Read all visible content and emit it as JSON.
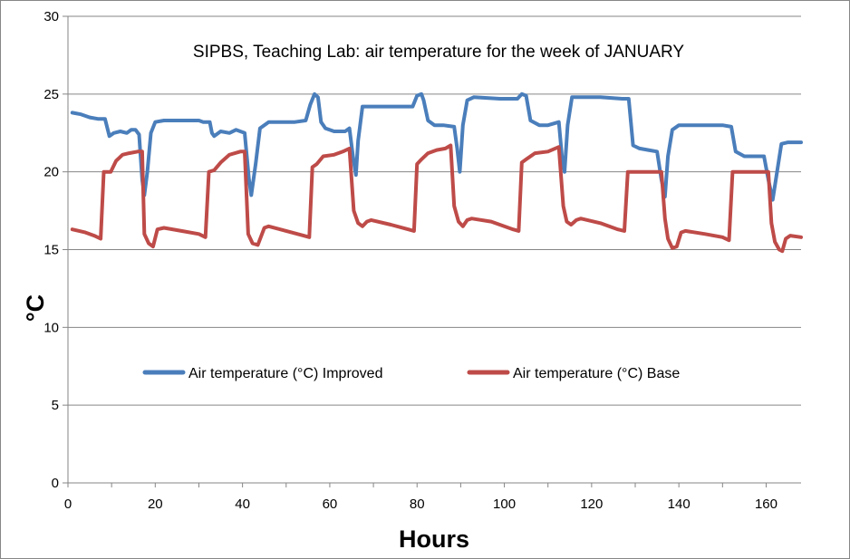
{
  "chart_data": {
    "type": "line",
    "title": "SIPBS, Teaching Lab: air temperature for the week of JANUARY",
    "xlabel": "Hours",
    "ylabel": "°C",
    "xlim": [
      0,
      168
    ],
    "ylim": [
      0,
      30
    ],
    "x_ticks": [
      "0",
      "20",
      "40",
      "60",
      "80",
      "100",
      "120",
      "140",
      "160"
    ],
    "y_ticks": [
      "0",
      "5",
      "10",
      "15",
      "20",
      "25",
      "30"
    ],
    "grid": "horizontal",
    "legend_position": "center",
    "series": [
      {
        "name": "Air temperature (°C) Improved",
        "color": "#4a7ebb",
        "points": [
          [
            1,
            23.8
          ],
          [
            3,
            23.7
          ],
          [
            5,
            23.5
          ],
          [
            7,
            23.4
          ],
          [
            8.5,
            23.4
          ],
          [
            9.5,
            22.3
          ],
          [
            10.5,
            22.5
          ],
          [
            12,
            22.6
          ],
          [
            13.5,
            22.5
          ],
          [
            14.5,
            22.7
          ],
          [
            15.5,
            22.7
          ],
          [
            16.3,
            22.4
          ],
          [
            17,
            19.5
          ],
          [
            17.5,
            18.5
          ],
          [
            18.2,
            20
          ],
          [
            19,
            22.5
          ],
          [
            20,
            23.2
          ],
          [
            22,
            23.3
          ],
          [
            26,
            23.3
          ],
          [
            30,
            23.3
          ],
          [
            31,
            23.2
          ],
          [
            32.5,
            23.2
          ],
          [
            33,
            22.5
          ],
          [
            33.5,
            22.3
          ],
          [
            35,
            22.6
          ],
          [
            37,
            22.5
          ],
          [
            38.5,
            22.7
          ],
          [
            39.5,
            22.6
          ],
          [
            40.5,
            22.5
          ],
          [
            41.5,
            19.5
          ],
          [
            42,
            18.5
          ],
          [
            43,
            20.5
          ],
          [
            44,
            22.8
          ],
          [
            46,
            23.2
          ],
          [
            48,
            23.2
          ],
          [
            52,
            23.2
          ],
          [
            54.5,
            23.3
          ],
          [
            55.5,
            24.3
          ],
          [
            56.5,
            25
          ],
          [
            57.3,
            24.8
          ],
          [
            58,
            23.2
          ],
          [
            59,
            22.8
          ],
          [
            61,
            22.6
          ],
          [
            63.5,
            22.6
          ],
          [
            64.5,
            22.8
          ],
          [
            65.3,
            21
          ],
          [
            66,
            19.8
          ],
          [
            66.5,
            22
          ],
          [
            67.5,
            24.2
          ],
          [
            69,
            24.2
          ],
          [
            71,
            24.2
          ],
          [
            75,
            24.2
          ],
          [
            79,
            24.2
          ],
          [
            80,
            24.9
          ],
          [
            81,
            25
          ],
          [
            81.5,
            24.6
          ],
          [
            82.5,
            23.3
          ],
          [
            84,
            23
          ],
          [
            86,
            23
          ],
          [
            88.5,
            22.9
          ],
          [
            89.2,
            21.5
          ],
          [
            89.8,
            20
          ],
          [
            90.5,
            23
          ],
          [
            91.5,
            24.6
          ],
          [
            93,
            24.8
          ],
          [
            99,
            24.7
          ],
          [
            103,
            24.7
          ],
          [
            104,
            25
          ],
          [
            105,
            24.9
          ],
          [
            106,
            23.3
          ],
          [
            108,
            23
          ],
          [
            110,
            23
          ],
          [
            112.5,
            23.2
          ],
          [
            113.2,
            21
          ],
          [
            113.8,
            20
          ],
          [
            114.5,
            23
          ],
          [
            115.5,
            24.8
          ],
          [
            118,
            24.8
          ],
          [
            122,
            24.8
          ],
          [
            127,
            24.7
          ],
          [
            128.5,
            24.7
          ],
          [
            129.5,
            21.7
          ],
          [
            131,
            21.5
          ],
          [
            133,
            21.4
          ],
          [
            135,
            21.3
          ],
          [
            136,
            19.5
          ],
          [
            136.8,
            18.4
          ],
          [
            137.5,
            21
          ],
          [
            138.5,
            22.7
          ],
          [
            140,
            23
          ],
          [
            146,
            23
          ],
          [
            150,
            23
          ],
          [
            152,
            22.9
          ],
          [
            153,
            21.3
          ],
          [
            155,
            21
          ],
          [
            158,
            21
          ],
          [
            159.5,
            21
          ],
          [
            160.5,
            19.5
          ],
          [
            161.5,
            18.2
          ],
          [
            162.5,
            20
          ],
          [
            163.5,
            21.8
          ],
          [
            165,
            21.9
          ],
          [
            168,
            21.9
          ]
        ]
      },
      {
        "name": "Air temperature (°C) Base",
        "color": "#be4b48",
        "points": [
          [
            1,
            16.3
          ],
          [
            4,
            16.1
          ],
          [
            6,
            15.9
          ],
          [
            7.5,
            15.7
          ],
          [
            8.2,
            20
          ],
          [
            9,
            20
          ],
          [
            9.8,
            20
          ],
          [
            11,
            20.7
          ],
          [
            12.5,
            21.1
          ],
          [
            14,
            21.2
          ],
          [
            16,
            21.3
          ],
          [
            17,
            21.3
          ],
          [
            17.5,
            16
          ],
          [
            18.5,
            15.4
          ],
          [
            19.5,
            15.2
          ],
          [
            20.5,
            16.3
          ],
          [
            22,
            16.4
          ],
          [
            26,
            16.2
          ],
          [
            30,
            16
          ],
          [
            31.5,
            15.8
          ],
          [
            32.3,
            20
          ],
          [
            33.5,
            20.1
          ],
          [
            35,
            20.6
          ],
          [
            37,
            21.1
          ],
          [
            39.5,
            21.3
          ],
          [
            40.5,
            21.3
          ],
          [
            41.3,
            16
          ],
          [
            42.3,
            15.4
          ],
          [
            43.5,
            15.3
          ],
          [
            45,
            16.4
          ],
          [
            46,
            16.5
          ],
          [
            50,
            16.2
          ],
          [
            54,
            15.9
          ],
          [
            55.3,
            15.8
          ],
          [
            56,
            20.3
          ],
          [
            57,
            20.5
          ],
          [
            58.5,
            21
          ],
          [
            61,
            21.1
          ],
          [
            63,
            21.3
          ],
          [
            64.5,
            21.5
          ],
          [
            65.5,
            17.5
          ],
          [
            66.5,
            16.7
          ],
          [
            67.5,
            16.5
          ],
          [
            68.5,
            16.8
          ],
          [
            69.5,
            16.9
          ],
          [
            74,
            16.6
          ],
          [
            78,
            16.3
          ],
          [
            79.3,
            16.2
          ],
          [
            80,
            20.5
          ],
          [
            81,
            20.8
          ],
          [
            82.5,
            21.2
          ],
          [
            84.5,
            21.4
          ],
          [
            86.5,
            21.5
          ],
          [
            87.7,
            21.7
          ],
          [
            88.5,
            17.8
          ],
          [
            89.5,
            16.8
          ],
          [
            90.5,
            16.5
          ],
          [
            91.5,
            16.9
          ],
          [
            92.5,
            17
          ],
          [
            97,
            16.8
          ],
          [
            102,
            16.3
          ],
          [
            103.3,
            16.2
          ],
          [
            104,
            20.6
          ],
          [
            105,
            20.8
          ],
          [
            107,
            21.2
          ],
          [
            110,
            21.3
          ],
          [
            112.5,
            21.6
          ],
          [
            113.5,
            17.8
          ],
          [
            114.3,
            16.8
          ],
          [
            115.3,
            16.6
          ],
          [
            116.5,
            16.9
          ],
          [
            117.5,
            17
          ],
          [
            122,
            16.7
          ],
          [
            126,
            16.3
          ],
          [
            127.5,
            16.2
          ],
          [
            128.3,
            20
          ],
          [
            130,
            20
          ],
          [
            136,
            20
          ],
          [
            136.8,
            17
          ],
          [
            137.5,
            15.7
          ],
          [
            138.5,
            15.1
          ],
          [
            139.5,
            15.2
          ],
          [
            140.5,
            16.1
          ],
          [
            141.5,
            16.2
          ],
          [
            146,
            16
          ],
          [
            150,
            15.8
          ],
          [
            151.5,
            15.6
          ],
          [
            152.3,
            20
          ],
          [
            155,
            20
          ],
          [
            160.5,
            20
          ],
          [
            161.2,
            16.7
          ],
          [
            162,
            15.5
          ],
          [
            163,
            15
          ],
          [
            163.7,
            14.9
          ],
          [
            164.5,
            15.7
          ],
          [
            165.5,
            15.9
          ],
          [
            168,
            15.8
          ]
        ]
      }
    ]
  }
}
